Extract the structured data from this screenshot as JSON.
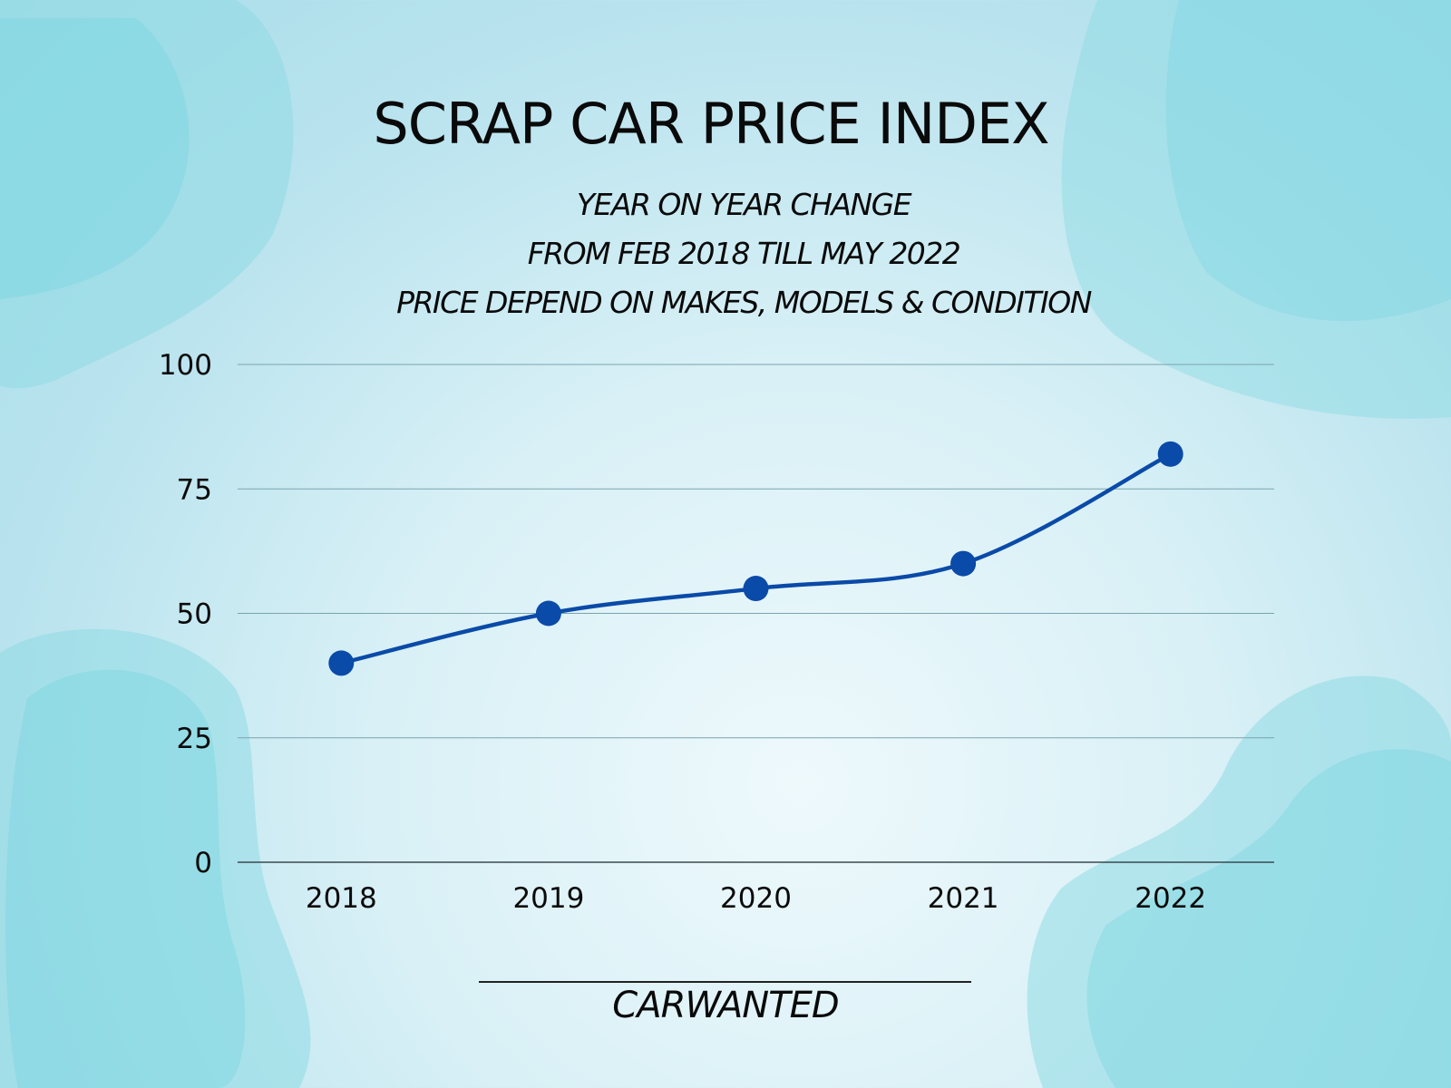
{
  "chart_data": {
    "type": "line",
    "title": "SCRAP CAR PRICE INDEX",
    "subtitle": [
      "YEAR ON YEAR CHANGE",
      "FROM FEB 2018 TILL MAY 2022",
      "PRICE DEPEND ON MAKES, MODELS & CONDITION"
    ],
    "categories": [
      "2018",
      "2019",
      "2020",
      "2021",
      "2022"
    ],
    "series": [
      {
        "values": [
          40,
          50,
          55,
          60,
          82
        ]
      }
    ],
    "ylim": [
      0,
      100
    ],
    "yticks": [
      0,
      25,
      50,
      75,
      100
    ],
    "xlabel": "",
    "ylabel": "",
    "grid": true,
    "legend": "none",
    "line_color": "#0a4aa8"
  },
  "footer": {
    "brand": "CARWANTED"
  }
}
